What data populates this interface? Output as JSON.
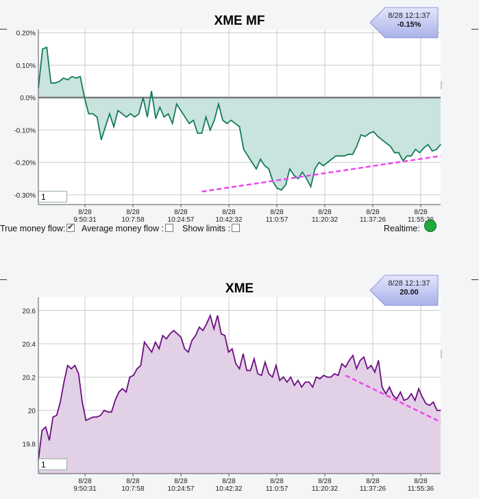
{
  "chart_data": [
    {
      "type": "area",
      "title": "XME MF",
      "ylim": [
        -0.33,
        0.21
      ],
      "y_ticks": [
        "0.20%",
        "0.10%",
        "0.0%",
        "-0.10%",
        "-0.20%",
        "-0.30%"
      ],
      "y_tick_values": [
        0.2,
        0.1,
        0.0,
        -0.1,
        -0.2,
        -0.3
      ],
      "x_ticks": [
        {
          "date": "8/28",
          "time": "9:50:31"
        },
        {
          "date": "8/28",
          "time": "10:7:58"
        },
        {
          "date": "8/28",
          "time": "10:24:57"
        },
        {
          "date": "8/28",
          "time": "10:42:32"
        },
        {
          "date": "8/28",
          "time": "11:0:57"
        },
        {
          "date": "8/28",
          "time": "11:20:32"
        },
        {
          "date": "8/28",
          "time": "11:37:26"
        },
        {
          "date": "8/28",
          "time": "11:55:36"
        }
      ],
      "grid": true,
      "series": [
        {
          "color": "#137a5a",
          "fill": "#c9e3de",
          "values": [
            0.03,
            0.15,
            0.155,
            0.045,
            0.045,
            0.05,
            0.06,
            0.055,
            0.065,
            0.06,
            0.065,
            0.0,
            -0.05,
            -0.05,
            -0.06,
            -0.13,
            -0.09,
            -0.05,
            -0.09,
            -0.04,
            -0.05,
            -0.06,
            -0.05,
            -0.06,
            -0.05,
            0.0,
            -0.06,
            0.02,
            -0.065,
            -0.03,
            -0.06,
            -0.05,
            -0.08,
            -0.02,
            -0.04,
            -0.06,
            -0.08,
            -0.07,
            -0.11,
            -0.11,
            -0.06,
            -0.1,
            -0.07,
            -0.02,
            -0.07,
            -0.08,
            -0.07,
            -0.08,
            -0.09,
            -0.16,
            -0.18,
            -0.2,
            -0.22,
            -0.19,
            -0.21,
            -0.22,
            -0.26,
            -0.28,
            -0.285,
            -0.27,
            -0.22,
            -0.24,
            -0.25,
            -0.23,
            -0.25,
            -0.275,
            -0.22,
            -0.2,
            -0.21,
            -0.2,
            -0.19,
            -0.18,
            -0.18,
            -0.18,
            -0.175,
            -0.175,
            -0.15,
            -0.115,
            -0.12,
            -0.11,
            -0.105,
            -0.12,
            -0.13,
            -0.14,
            -0.15,
            -0.17,
            -0.17,
            -0.195,
            -0.18,
            -0.18,
            -0.16,
            -0.17,
            -0.155,
            -0.145,
            -0.165,
            -0.16,
            -0.145
          ],
          "x_min": 0,
          "x_max": 96
        }
      ],
      "trendline": {
        "color": "#ee44ee",
        "from": [
          39,
          -0.29
        ],
        "to": [
          96,
          -0.18
        ]
      },
      "realtime_time": "8/28 12:1:37",
      "realtime_value": "-0.15%"
    },
    {
      "type": "area",
      "title": "XME",
      "ylim": [
        19.62,
        20.68
      ],
      "y_ticks": [
        "20.6",
        "20.4",
        "20.2",
        "20",
        "19.8"
      ],
      "y_tick_values": [
        20.6,
        20.4,
        20.2,
        20.0,
        19.8
      ],
      "x_ticks": [
        {
          "date": "8/28",
          "time": "9:50:31"
        },
        {
          "date": "8/28",
          "time": "10:7:58"
        },
        {
          "date": "8/28",
          "time": "10:24:57"
        },
        {
          "date": "8/28",
          "time": "10:42:32"
        },
        {
          "date": "8/28",
          "time": "11:0:57"
        },
        {
          "date": "8/28",
          "time": "11:20:32"
        },
        {
          "date": "8/28",
          "time": "11:37:26"
        },
        {
          "date": "8/28",
          "time": "11:55:36"
        }
      ],
      "grid": true,
      "series": [
        {
          "color": "#6a0d7f",
          "fill": "#e2d0e6",
          "values": [
            19.7,
            19.88,
            19.9,
            19.82,
            19.96,
            19.97,
            20.05,
            20.17,
            20.27,
            20.25,
            20.27,
            20.22,
            20.05,
            19.94,
            19.95,
            19.96,
            19.96,
            19.97,
            20.0,
            19.99,
            19.99,
            20.06,
            20.11,
            20.13,
            20.11,
            20.2,
            20.21,
            20.25,
            20.27,
            20.41,
            20.38,
            20.35,
            20.41,
            20.37,
            20.45,
            20.43,
            20.46,
            20.48,
            20.46,
            20.44,
            20.37,
            20.35,
            20.42,
            20.45,
            20.5,
            20.48,
            20.52,
            20.57,
            20.49,
            20.57,
            20.46,
            20.45,
            20.35,
            20.37,
            20.28,
            20.25,
            20.34,
            20.24,
            20.24,
            20.31,
            20.22,
            20.21,
            20.29,
            20.22,
            20.2,
            20.27,
            20.18,
            20.2,
            20.17,
            20.2,
            20.15,
            20.18,
            20.14,
            20.17,
            20.17,
            20.14,
            20.2,
            20.19,
            20.21,
            20.2,
            20.2,
            20.22,
            20.21,
            20.28,
            20.26,
            20.3,
            20.33,
            20.25,
            20.3,
            20.32,
            20.25,
            20.27,
            20.23,
            20.3,
            20.14,
            20.1,
            20.14,
            20.09,
            20.07,
            20.11,
            20.06,
            20.07,
            20.1,
            20.06,
            20.13,
            20.08,
            20.04,
            20.03,
            20.05,
            20.0,
            20.0
          ],
          "x_min": 0,
          "x_max": 110
        }
      ],
      "trendline": {
        "color": "#ee44ee",
        "from": [
          84,
          20.21
        ],
        "to": [
          110,
          19.93
        ]
      },
      "realtime_time": "8/28 12:1:37",
      "realtime_value": "20.00"
    }
  ],
  "controls": {
    "range_value_top": "1",
    "range_value_bottom": "1",
    "true_mf_label": "True money flow:",
    "true_mf_checked": true,
    "avg_mf_label": "Average money flow :",
    "avg_mf_checked": false,
    "show_limits_label": "Show limits :",
    "show_limits_checked": false,
    "realtime_label": "Realtime:"
  }
}
